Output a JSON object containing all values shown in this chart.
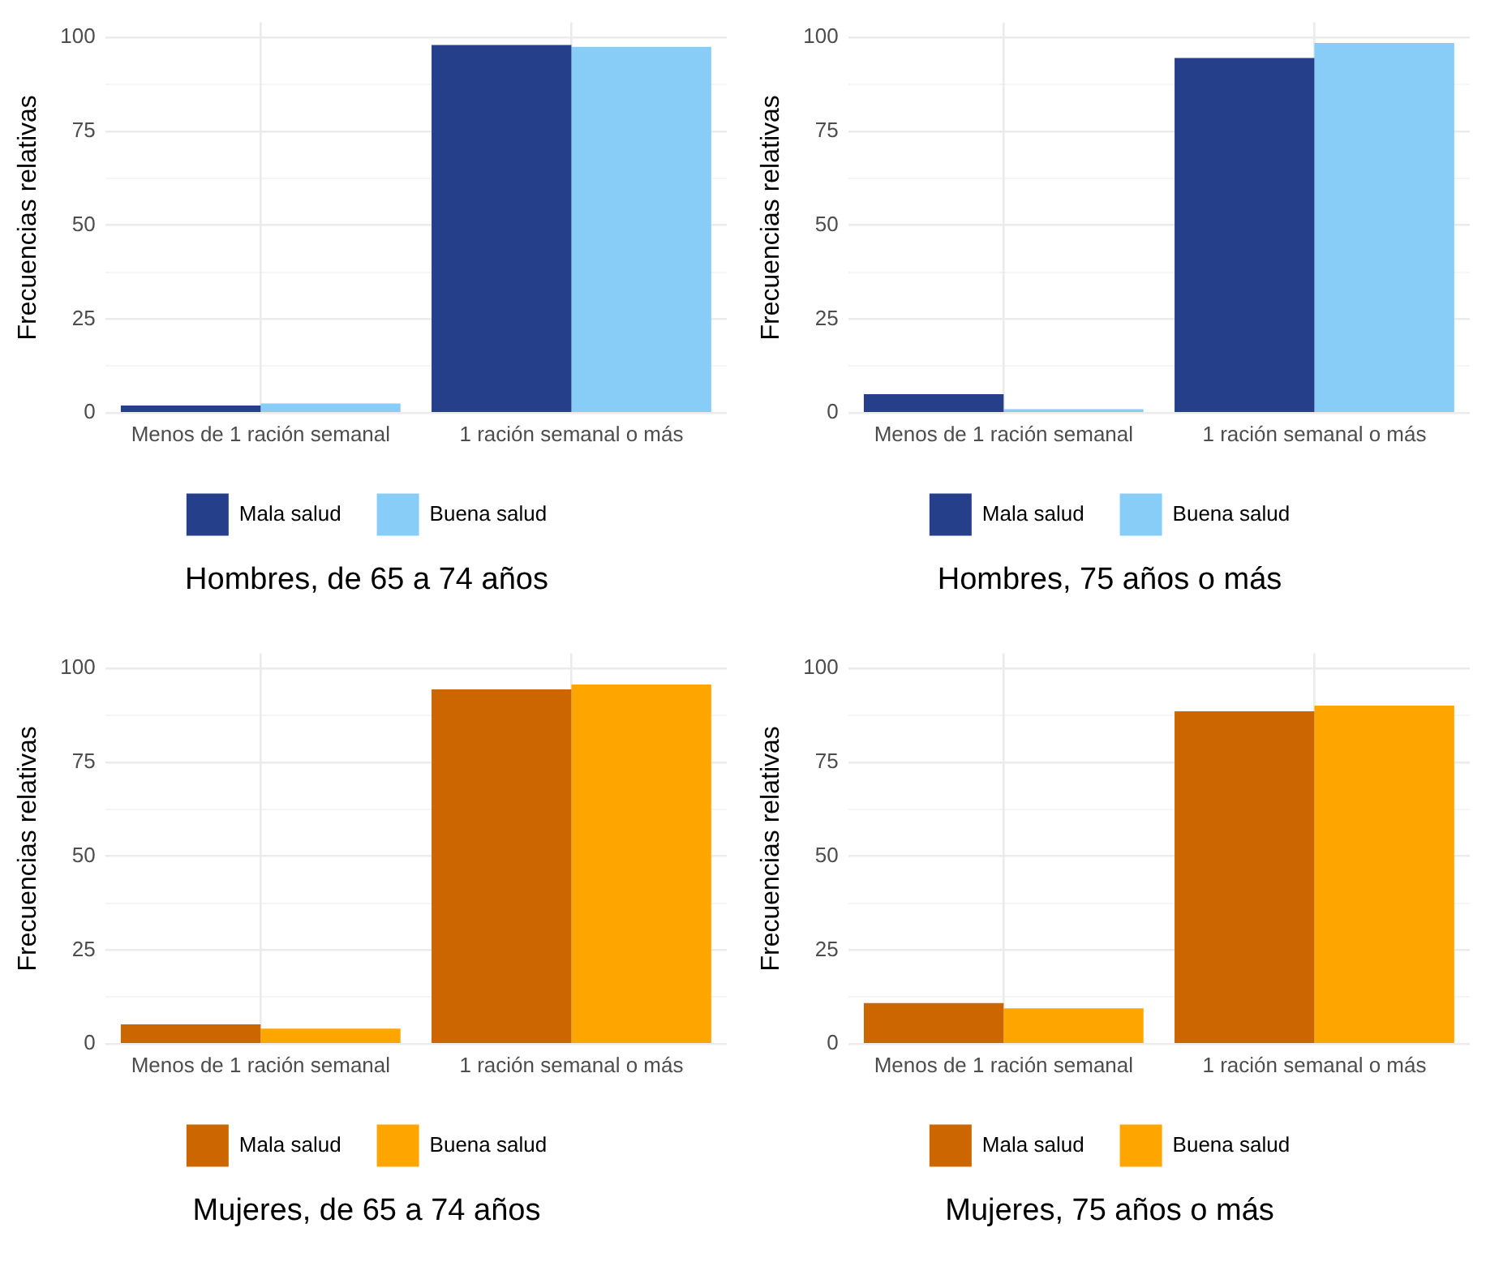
{
  "chart_data": [
    {
      "type": "bar",
      "title": "Hombres, de 65 a 74 años",
      "ylabel": "Frecuencias relativas",
      "categories": [
        "Menos de 1 ración semanal",
        "1 ración semanal o más"
      ],
      "series": [
        {
          "name": "Mala salud",
          "color": "#253f8a",
          "values": [
            2,
            98
          ]
        },
        {
          "name": "Buena salud",
          "color": "#87cdf8",
          "values": [
            2.5,
            97.5
          ]
        }
      ],
      "ylim": [
        0,
        104
      ],
      "yticks": [
        0,
        {
          "value": 12.5,
          "label": null
        },
        25,
        {
          "value": 37.5,
          "label": null
        },
        50,
        {
          "value": 62.5,
          "label": null
        },
        75,
        {
          "value": 87.5,
          "label": null
        },
        100
      ],
      "grid": true,
      "legend": "bottom"
    },
    {
      "type": "bar",
      "title": "Hombres, 75 años o más",
      "ylabel": "Frecuencias relativas",
      "categories": [
        "Menos de 1 ración semanal",
        "1 ración semanal o más"
      ],
      "series": [
        {
          "name": "Mala salud",
          "color": "#253f8a",
          "values": [
            5,
            94.5
          ]
        },
        {
          "name": "Buena salud",
          "color": "#87cdf8",
          "values": [
            1,
            98.5
          ]
        }
      ],
      "ylim": [
        0,
        104
      ],
      "yticks": [
        0,
        {
          "value": 12.5,
          "label": null
        },
        25,
        {
          "value": 37.5,
          "label": null
        },
        50,
        {
          "value": 62.5,
          "label": null
        },
        75,
        {
          "value": 87.5,
          "label": null
        },
        100
      ],
      "grid": true,
      "legend": "bottom"
    },
    {
      "type": "bar",
      "title": "Mujeres, de 65 a 74 años",
      "ylabel": "Frecuencias relativas",
      "categories": [
        "Menos de 1 ración semanal",
        "1 ración semanal o más"
      ],
      "series": [
        {
          "name": "Mala salud",
          "color": "#cc6600",
          "values": [
            5.2,
            94.4
          ]
        },
        {
          "name": "Buena salud",
          "color": "#ffa500",
          "values": [
            4.1,
            95.7
          ]
        }
      ],
      "ylim": [
        0,
        104
      ],
      "yticks": [
        0,
        {
          "value": 12.5,
          "label": null
        },
        25,
        {
          "value": 37.5,
          "label": null
        },
        50,
        {
          "value": 62.5,
          "label": null
        },
        75,
        {
          "value": 87.5,
          "label": null
        },
        100
      ],
      "grid": true,
      "legend": "bottom"
    },
    {
      "type": "bar",
      "title": "Mujeres, 75 años o más",
      "ylabel": "Frecuencias relativas",
      "categories": [
        "Menos de 1 ración semanal",
        "1 ración semanal o más"
      ],
      "series": [
        {
          "name": "Mala salud",
          "color": "#cc6600",
          "values": [
            10.9,
            88.6
          ]
        },
        {
          "name": "Buena salud",
          "color": "#ffa500",
          "values": [
            9.5,
            90.1
          ]
        }
      ],
      "ylim": [
        0,
        104
      ],
      "yticks": [
        0,
        {
          "value": 12.5,
          "label": null
        },
        25,
        {
          "value": 37.5,
          "label": null
        },
        50,
        {
          "value": 62.5,
          "label": null
        },
        75,
        {
          "value": 87.5,
          "label": null
        },
        100
      ],
      "grid": true,
      "legend": "bottom"
    }
  ]
}
